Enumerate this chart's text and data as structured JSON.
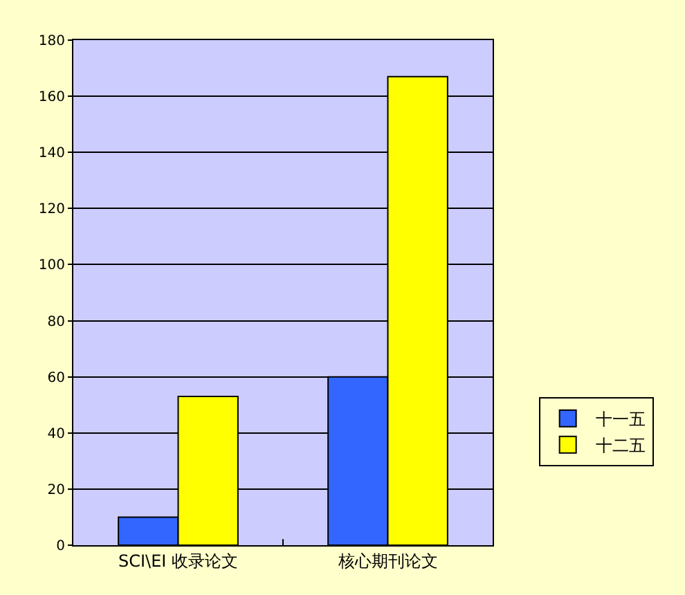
{
  "chart_data": {
    "type": "bar",
    "categories": [
      "SCI\\EI 收录论文",
      "核心期刊论文"
    ],
    "series": [
      {
        "name": "十一五",
        "color": "#3366ff",
        "values": [
          10,
          60
        ]
      },
      {
        "name": "十二五",
        "color": "#ffff00",
        "values": [
          53,
          167
        ]
      }
    ],
    "ylim": [
      0,
      180
    ],
    "yticks": [
      0,
      20,
      40,
      60,
      80,
      100,
      120,
      140,
      160,
      180
    ],
    "grid": "y",
    "legend": "right"
  }
}
